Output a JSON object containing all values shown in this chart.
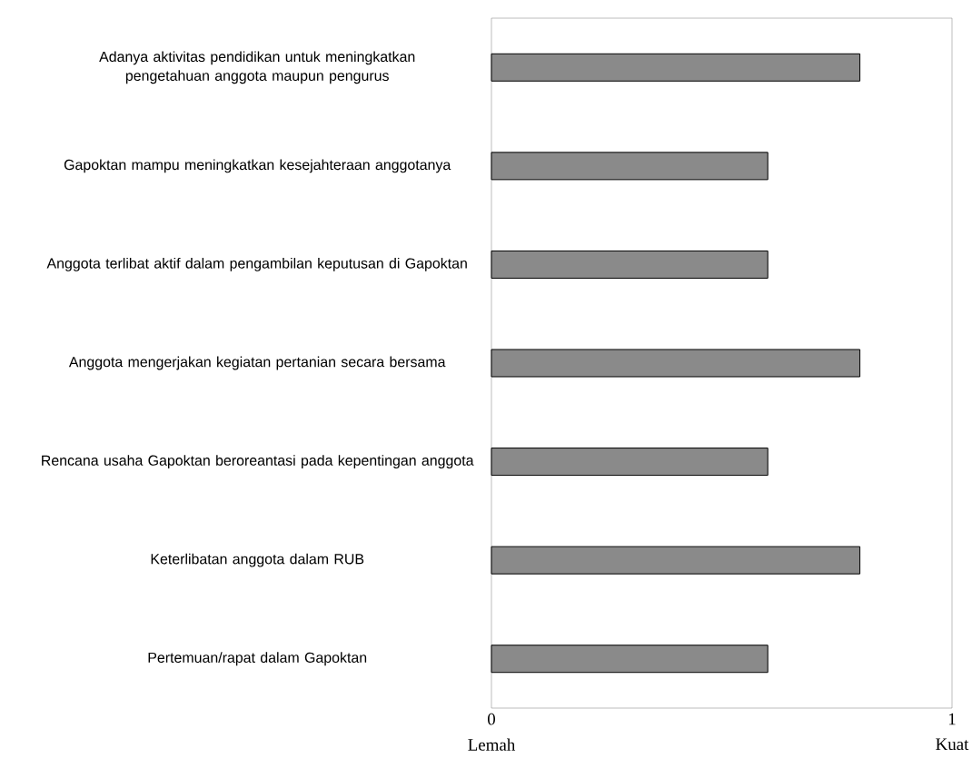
{
  "chart_data": {
    "type": "bar",
    "orientation": "horizontal",
    "categories": [
      "Adanya aktivitas pendidikan untuk meningkatkan pengetahuan anggota maupun pengurus",
      "Gapoktan mampu meningkatkan kesejahteraan anggotanya",
      "Anggota terlibat aktif dalam pengambilan keputusan di Gapoktan",
      "Anggota mengerjakan kegiatan pertanian secara bersama",
      "Rencana usaha Gapoktan beroreantasi pada kepentingan anggota",
      "Keterlibatan anggota dalam RUB",
      "Pertemuan/rapat dalam Gapoktan"
    ],
    "values": [
      0.8,
      0.6,
      0.6,
      0.8,
      0.6,
      0.8,
      0.6
    ],
    "color": "#8a8a8a",
    "xlim": [
      0,
      1
    ],
    "xticks": [
      0,
      1
    ],
    "annotations": [
      "Lemah",
      "Kuat"
    ],
    "grid": false
  }
}
